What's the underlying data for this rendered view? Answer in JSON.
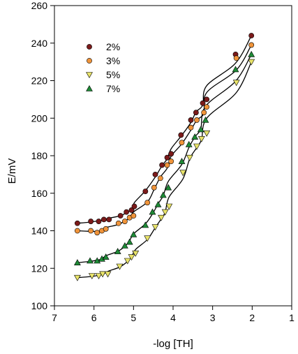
{
  "chart_data": {
    "type": "scatter",
    "title": "",
    "xlabel": "-log [TH]",
    "ylabel": "E/mV",
    "xlim": [
      7,
      1
    ],
    "ylim": [
      100,
      260
    ],
    "x_reversed": true,
    "xticks": [
      7,
      6,
      5,
      4,
      3,
      2,
      1
    ],
    "yticks": [
      100,
      120,
      140,
      160,
      180,
      200,
      220,
      240,
      260
    ],
    "grid": false,
    "legend_position": "top-left",
    "series": [
      {
        "name": "2%",
        "marker": "circle",
        "color": "#7b1a1a",
        "x": [
          6.42,
          6.08,
          5.88,
          5.75,
          5.62,
          5.33,
          5.18,
          5.05,
          4.98,
          4.7,
          4.45,
          4.28,
          4.15,
          4.05,
          3.8,
          3.55,
          3.42,
          3.25,
          3.15,
          2.42,
          2.02
        ],
        "y": [
          144,
          145,
          145,
          146,
          146,
          148,
          150,
          151,
          153,
          161,
          170,
          175,
          179,
          181,
          191,
          199,
          203,
          208,
          210,
          234,
          244
        ]
      },
      {
        "name": "3%",
        "marker": "circle",
        "color": "#f0943a",
        "x": [
          6.42,
          6.08,
          5.92,
          5.8,
          5.7,
          5.38,
          5.22,
          5.1,
          5.0,
          4.65,
          4.48,
          4.32,
          4.15,
          4.05,
          3.78,
          3.55,
          3.4,
          3.22,
          3.15,
          2.4,
          2.02
        ],
        "y": [
          140,
          140,
          139,
          140,
          141,
          144,
          145,
          147,
          148,
          155,
          163,
          168,
          175,
          177,
          187,
          195,
          199,
          203,
          206,
          232,
          239
        ]
      },
      {
        "name": "5%",
        "marker": "triangle-down",
        "color": "#e8e36a",
        "x": [
          6.42,
          6.05,
          5.88,
          5.78,
          5.65,
          5.35,
          5.15,
          5.05,
          4.95,
          4.65,
          4.45,
          4.3,
          4.2,
          4.1,
          3.75,
          3.58,
          3.4,
          3.28,
          3.15,
          2.4,
          2.02
        ],
        "y": [
          115,
          116,
          116,
          117,
          117,
          121,
          124,
          126,
          128,
          136,
          142,
          147,
          150,
          153,
          171,
          179,
          185,
          189,
          192,
          219,
          230
        ]
      },
      {
        "name": "7%",
        "marker": "triangle-up",
        "color": "#1e8a36",
        "x": [
          6.42,
          6.1,
          5.92,
          5.8,
          5.7,
          5.4,
          5.22,
          5.1,
          5.0,
          4.7,
          4.52,
          4.38,
          4.25,
          4.12,
          3.78,
          3.6,
          3.45,
          3.3,
          3.18,
          2.42,
          2.02
        ],
        "y": [
          123,
          124,
          124,
          125,
          126,
          129,
          132,
          134,
          138,
          143,
          150,
          154,
          159,
          163,
          177,
          186,
          190,
          194,
          199,
          226,
          234
        ]
      }
    ]
  }
}
